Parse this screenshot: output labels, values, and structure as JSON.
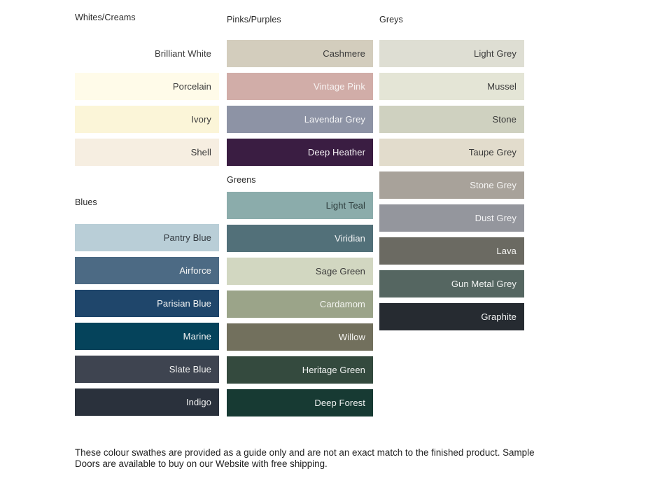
{
  "columns": [
    {
      "sections": [
        {
          "title": "Whites/Creams",
          "swatches": [
            {
              "name": "Brilliant White",
              "hex": "#ffffff",
              "label_color": "#3a3a3a"
            },
            {
              "name": "Porcelain",
              "hex": "#fffbe9",
              "label_color": "#3a3a3a"
            },
            {
              "name": "Ivory",
              "hex": "#fbf5d8",
              "label_color": "#3a3a3a"
            },
            {
              "name": "Shell",
              "hex": "#f6eee1",
              "label_color": "#3a3a3a"
            }
          ]
        },
        {
          "title": "Blues",
          "swatches": [
            {
              "name": "Pantry Blue",
              "hex": "#b9ced7",
              "label_color": "#333a40"
            },
            {
              "name": "Airforce",
              "hex": "#4c6a84",
              "label_color": "#f6f6f5"
            },
            {
              "name": "Parisian Blue",
              "hex": "#1f466b",
              "label_color": "#f6f6f5"
            },
            {
              "name": "Marine",
              "hex": "#05435b",
              "label_color": "#f6f6f5"
            },
            {
              "name": "Slate Blue",
              "hex": "#3e4450",
              "label_color": "#f4f4f4"
            },
            {
              "name": "Indigo",
              "hex": "#2a313c",
              "label_color": "#f4f4f4"
            }
          ]
        }
      ]
    },
    {
      "sections": [
        {
          "title": "Pinks/Purples",
          "swatches": [
            {
              "name": "Cashmere",
              "hex": "#d3cdbd",
              "label_color": "#3a3a3a"
            },
            {
              "name": "Vintage Pink",
              "hex": "#d1ada8",
              "label_color": "#f7f2f1"
            },
            {
              "name": "Lavendar Grey",
              "hex": "#8d93a5",
              "label_color": "#f2f3f5"
            },
            {
              "name": "Deep Heather",
              "hex": "#3a1d42",
              "label_color": "#f5f3f5"
            }
          ]
        },
        {
          "title": "Greens",
          "swatches": [
            {
              "name": "Light Teal",
              "hex": "#8bacab",
              "label_color": "#2c3b3b"
            },
            {
              "name": "Viridian",
              "hex": "#527079",
              "label_color": "#f4f5f6"
            },
            {
              "name": "Sage Green",
              "hex": "#d2d7c1",
              "label_color": "#3a3a3a"
            },
            {
              "name": "Cardamom",
              "hex": "#9ba489",
              "label_color": "#f4f5f1"
            },
            {
              "name": "Willow",
              "hex": "#72705d",
              "label_color": "#f5f4f1"
            },
            {
              "name": "Heritage Green",
              "hex": "#344a3e",
              "label_color": "#f2f4f3"
            },
            {
              "name": "Deep Forest",
              "hex": "#173a33",
              "label_color": "#f2f4f3"
            }
          ]
        }
      ]
    },
    {
      "sections": [
        {
          "title": "Greys",
          "swatches": [
            {
              "name": "Light Grey",
              "hex": "#deded3",
              "label_color": "#3a3a3a"
            },
            {
              "name": "Mussel",
              "hex": "#e4e5d6",
              "label_color": "#3a3a3a"
            },
            {
              "name": "Stone",
              "hex": "#cfd1c0",
              "label_color": "#3a3a3a"
            },
            {
              "name": "Taupe Grey",
              "hex": "#e2dccc",
              "label_color": "#3a3a3a"
            },
            {
              "name": "Stone Grey",
              "hex": "#a8a29a",
              "label_color": "#f5f4f3"
            },
            {
              "name": "Dust Grey",
              "hex": "#94969d",
              "label_color": "#f3f3f4"
            },
            {
              "name": "Lava",
              "hex": "#6b6a62",
              "label_color": "#f4f4f2"
            },
            {
              "name": "Gun Metal Grey",
              "hex": "#556661",
              "label_color": "#f2f4f3"
            },
            {
              "name": "Graphite",
              "hex": "#262b31",
              "label_color": "#f2f3f4"
            }
          ]
        }
      ]
    }
  ],
  "footer": {
    "line1": "These colour swathes are provided as a guide only and are not an exact match to the finished product.  Sample",
    "line2": "Doors are available to buy on our Website with free shipping."
  }
}
